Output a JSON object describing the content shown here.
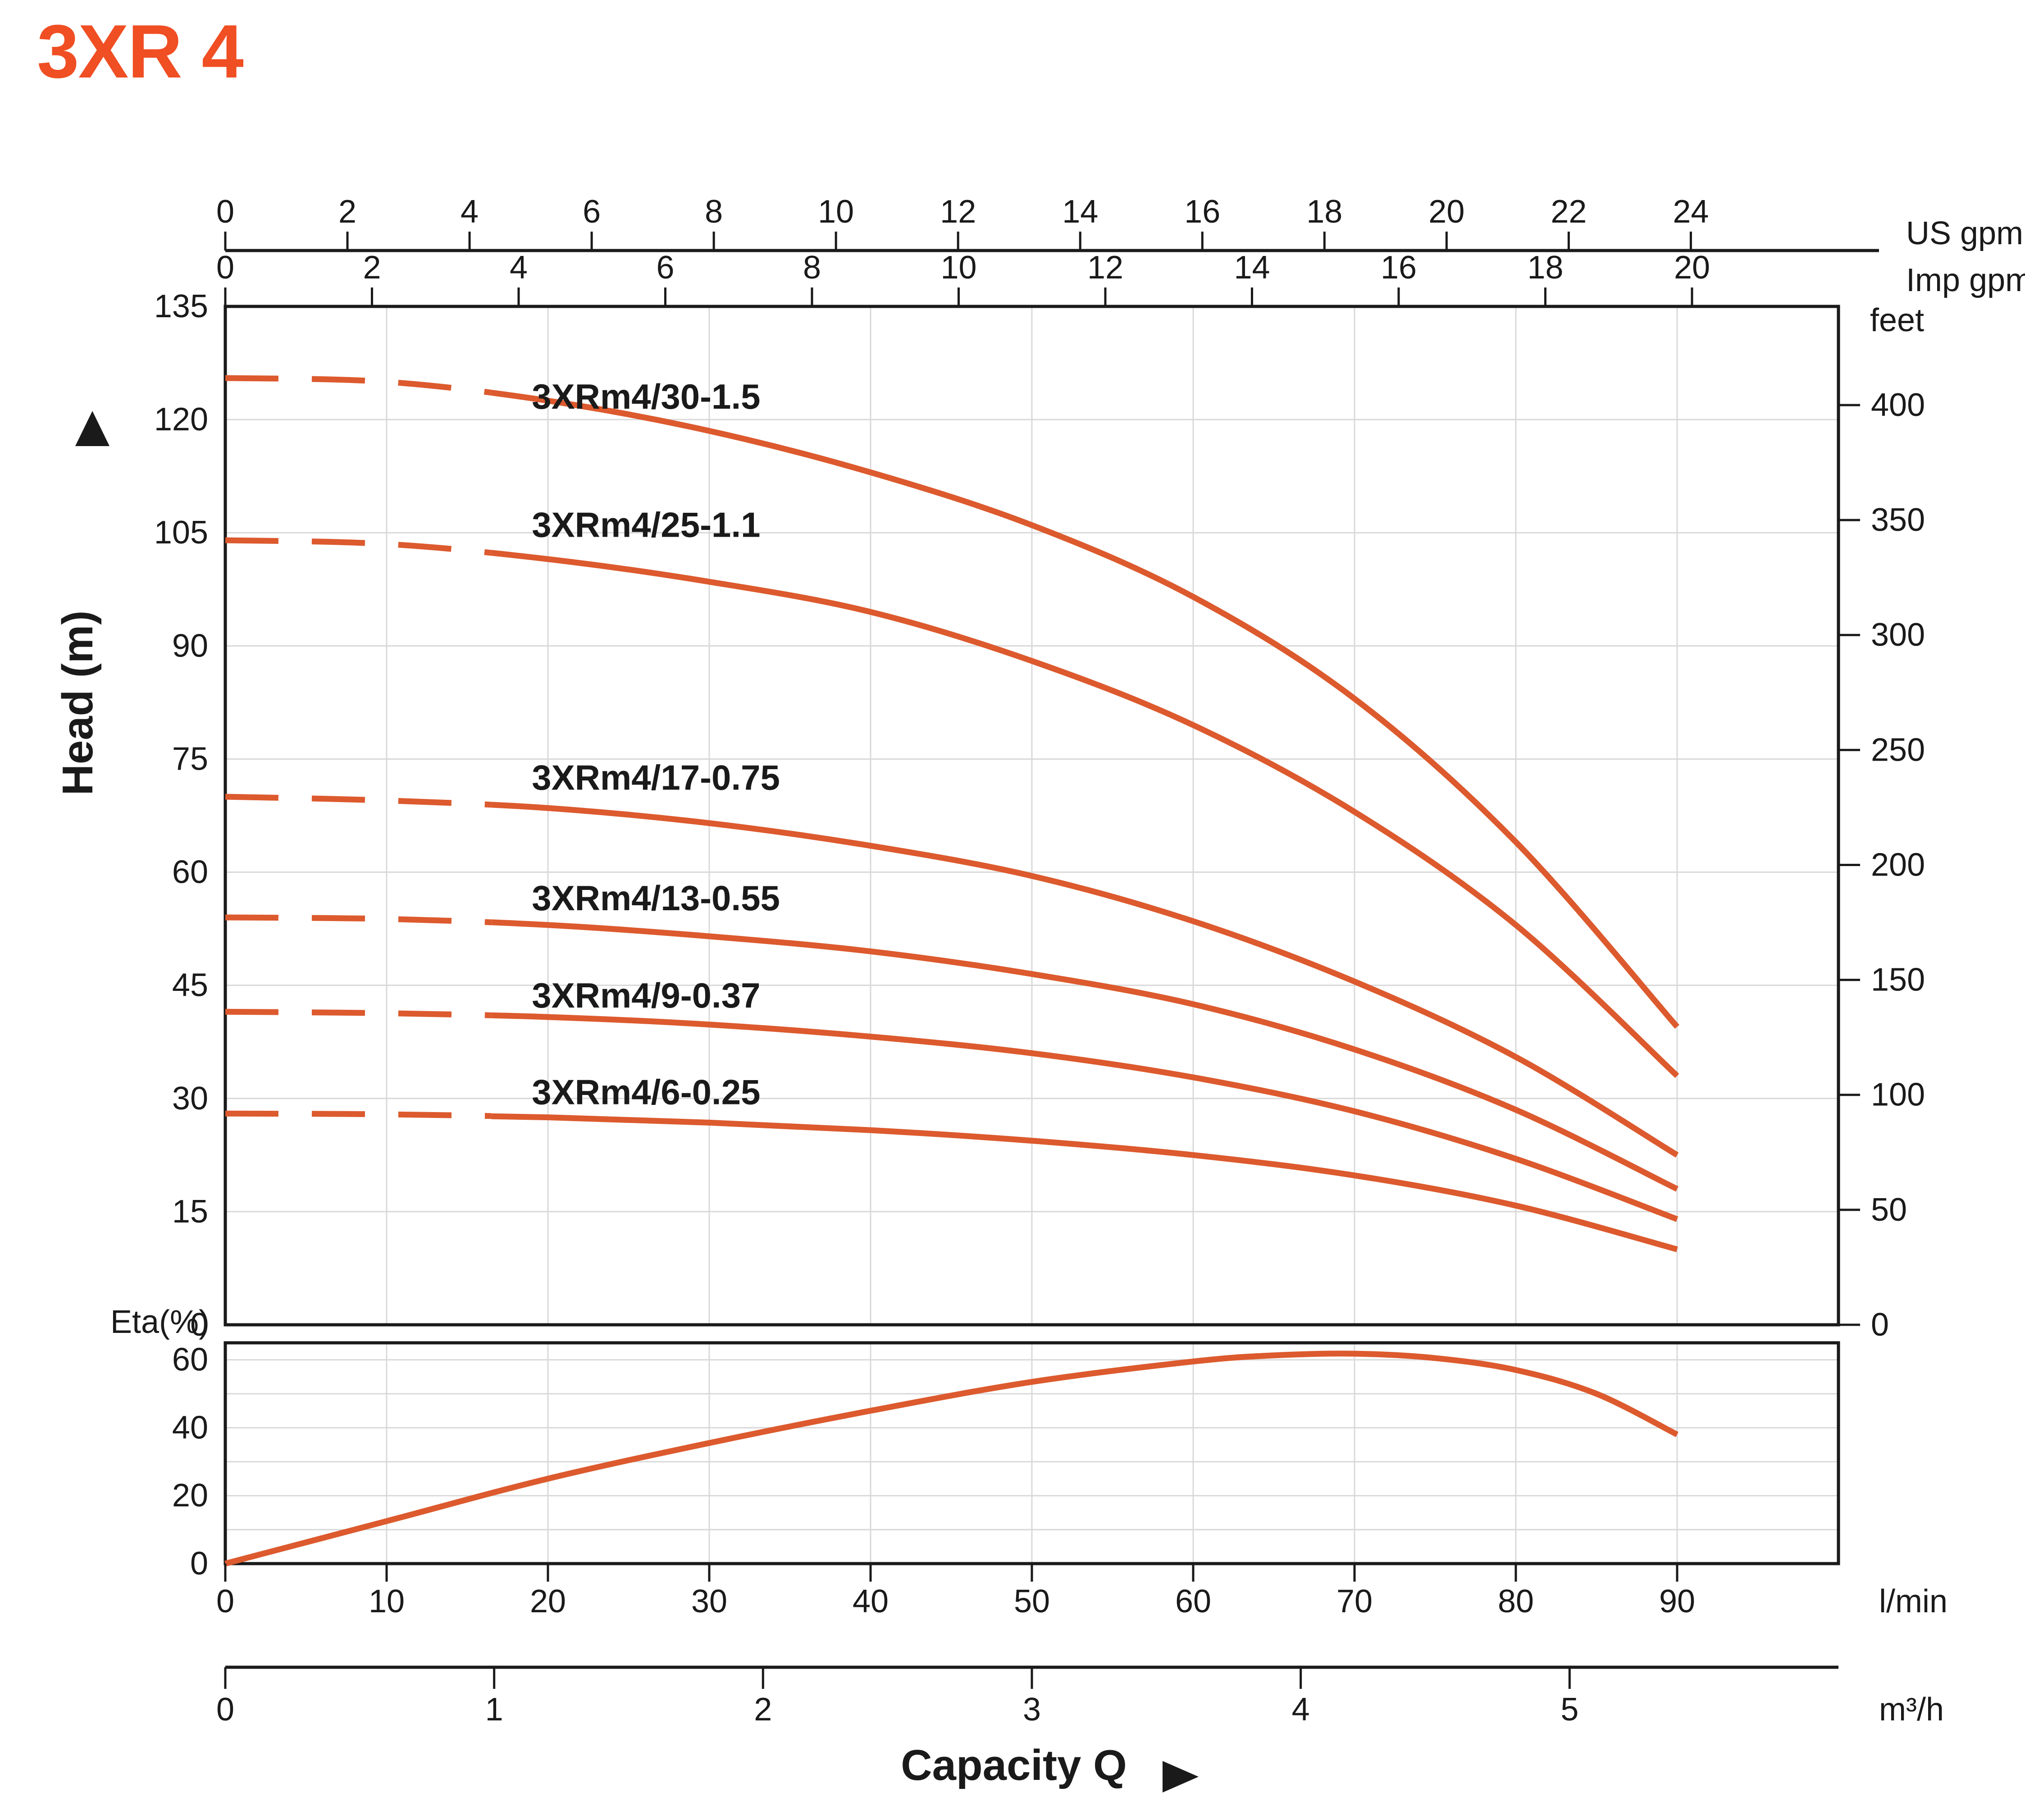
{
  "title": "3XR 4",
  "colors": {
    "accent": "#F04E23",
    "curve": "#DC5A2E",
    "grid": "#D9D9D9",
    "axis": "#1A1A1A",
    "text": "#1A1A1A"
  },
  "chart_data": {
    "type": "line",
    "title": "3XR 4",
    "xlabel": "Capacity Q",
    "x_axis": {
      "unit": "l/min",
      "ticks": [
        0,
        10,
        20,
        30,
        40,
        50,
        60,
        70,
        80,
        90
      ],
      "range": [
        0,
        100
      ]
    },
    "x_axis_secondary": [
      {
        "unit": "US gpm",
        "ticks": [
          0,
          2,
          4,
          6,
          8,
          10,
          12,
          14,
          16,
          18,
          20,
          22,
          24
        ],
        "lmin_per_unit": 3.78541
      },
      {
        "unit": "Imp gpm",
        "ticks": [
          0,
          2,
          4,
          6,
          8,
          10,
          12,
          14,
          16,
          18,
          20
        ],
        "lmin_per_unit": 4.54609
      },
      {
        "unit": "m³/h",
        "ticks": [
          0,
          1,
          2,
          3,
          4,
          5
        ],
        "lmin_per_unit": 16.6667
      }
    ],
    "head_panel": {
      "ylabel": "Head (m)",
      "y_unit": "m",
      "ylim": [
        0,
        135
      ],
      "yticks": [
        0,
        15,
        30,
        45,
        60,
        75,
        90,
        105,
        120,
        135
      ],
      "grid_x_every_lmin": 10,
      "grid_y_every_m": 15,
      "feet_axis": {
        "unit": "feet",
        "ticks": [
          0,
          50,
          100,
          150,
          200,
          250,
          300,
          350,
          400
        ],
        "m_per_foot": 0.3048
      },
      "dashed_until_lmin": 16.5,
      "series": [
        {
          "name": "3XRm4/30-1.5",
          "x": [
            0,
            10,
            20,
            30,
            40,
            50,
            60,
            70,
            80,
            90
          ],
          "values": [
            125.5,
            125,
            122.5,
            118.5,
            113,
            106,
            96.5,
            83,
            64,
            39.5
          ],
          "label_pos": {
            "q": 19,
            "m": 123
          }
        },
        {
          "name": "3XRm4/25-1.1",
          "x": [
            0,
            10,
            20,
            30,
            40,
            50,
            60,
            70,
            80,
            90
          ],
          "values": [
            104,
            103.5,
            101.5,
            98.5,
            94.5,
            88,
            79.5,
            68,
            53,
            33
          ],
          "label_pos": {
            "q": 19,
            "m": 106
          }
        },
        {
          "name": "3XRm4/17-0.75",
          "x": [
            0,
            10,
            20,
            30,
            40,
            50,
            60,
            70,
            80,
            90
          ],
          "values": [
            70,
            69.5,
            68.5,
            66.5,
            63.5,
            59.5,
            53.5,
            45.5,
            35.5,
            22.5
          ],
          "label_pos": {
            "q": 19,
            "m": 72.5
          }
        },
        {
          "name": "3XRm4/13-0.55",
          "x": [
            0,
            10,
            20,
            30,
            40,
            50,
            60,
            70,
            80,
            90
          ],
          "values": [
            54,
            53.8,
            53,
            51.5,
            49.5,
            46.5,
            42.5,
            36.5,
            28.5,
            18
          ],
          "label_pos": {
            "q": 19,
            "m": 56.5
          }
        },
        {
          "name": "3XRm4/9-0.37",
          "x": [
            0,
            10,
            20,
            30,
            40,
            50,
            60,
            70,
            80,
            90
          ],
          "values": [
            41.5,
            41.3,
            40.8,
            39.8,
            38.2,
            36,
            32.8,
            28.3,
            22,
            14
          ],
          "label_pos": {
            "q": 19,
            "m": 43.6
          }
        },
        {
          "name": "3XRm4/6-0.25",
          "x": [
            0,
            10,
            20,
            30,
            40,
            50,
            60,
            70,
            80,
            90
          ],
          "values": [
            28,
            27.9,
            27.5,
            26.8,
            25.8,
            24.4,
            22.5,
            19.8,
            15.8,
            10
          ],
          "label_pos": {
            "q": 19,
            "m": 30.8
          }
        }
      ]
    },
    "eta_panel": {
      "ylabel": "Eta(%)",
      "ylim": [
        0,
        65
      ],
      "yticks_labeled": [
        0,
        20,
        40,
        60
      ],
      "grid_y_every": 10,
      "series": {
        "name": "Eta",
        "x": [
          0,
          10,
          20,
          30,
          40,
          50,
          60,
          65,
          70,
          75,
          80,
          85,
          90
        ],
        "values": [
          0,
          12.5,
          25,
          35.5,
          45,
          53.5,
          59.5,
          61.3,
          61.8,
          60.5,
          57,
          50,
          38
        ]
      }
    }
  }
}
